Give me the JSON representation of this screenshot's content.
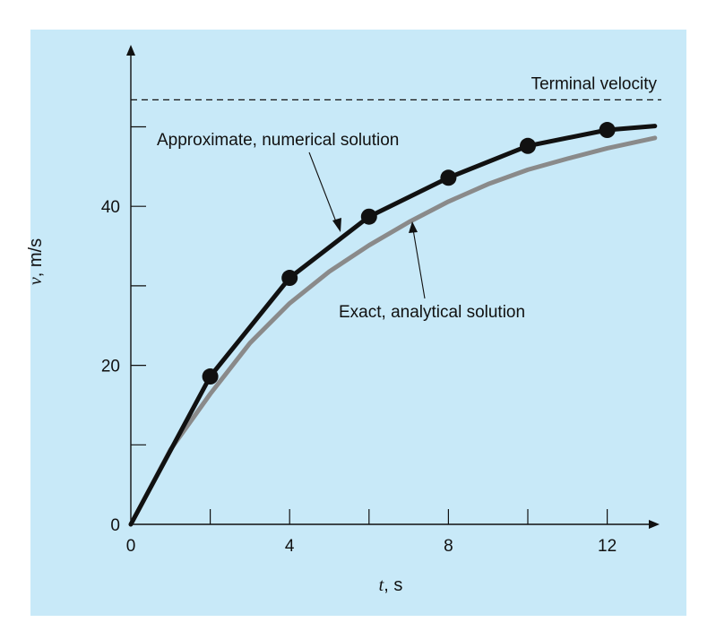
{
  "chart_data": {
    "type": "line",
    "x_label_var": "t",
    "x_label_unit": ", s",
    "y_label_var": "v",
    "y_label_unit": ", m/s",
    "xlim": [
      0,
      13
    ],
    "ylim": [
      0,
      55
    ],
    "x_ticks": [
      0,
      2,
      4,
      6,
      8,
      10,
      12
    ],
    "x_tick_labels": [
      "0",
      "",
      "4",
      "",
      "8",
      "",
      "12"
    ],
    "y_ticks": [
      0,
      10,
      20,
      30,
      40,
      50
    ],
    "y_tick_labels": [
      "0",
      "",
      "20",
      "",
      "40",
      ""
    ],
    "terminal_velocity": {
      "value": 53.4,
      "label": "Terminal velocity"
    },
    "series": [
      {
        "label": "Approximate, numerical solution",
        "color": "#111111",
        "x": [
          0,
          2,
          4,
          6,
          8,
          10,
          12,
          13.2
        ],
        "y": [
          0,
          18.6,
          31.0,
          38.7,
          43.6,
          47.6,
          49.6,
          50.1
        ]
      },
      {
        "label": "Exact, analytical solution",
        "color": "#8a8a8a",
        "x": [
          0,
          1,
          2,
          3,
          4,
          5,
          6,
          7,
          8,
          9,
          10,
          11,
          12,
          13.2
        ],
        "y": [
          0,
          9.4,
          16.4,
          22.8,
          27.8,
          31.8,
          35.1,
          38.0,
          40.6,
          42.8,
          44.6,
          46.0,
          47.3,
          48.6
        ]
      }
    ],
    "markers": {
      "series": "Approximate, numerical solution",
      "x": [
        2,
        4,
        6,
        8,
        10,
        12
      ],
      "y": [
        18.6,
        31.0,
        38.7,
        43.6,
        47.6,
        49.6
      ]
    },
    "colors": {
      "background": "#c8e9f8",
      "axis": "#111111",
      "numerical": "#111111",
      "analytical": "#8a8a8a"
    }
  }
}
